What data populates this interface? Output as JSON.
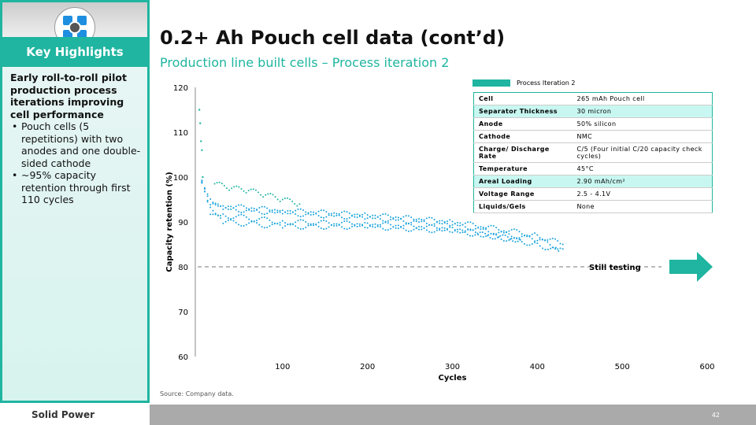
{
  "sidebar": {
    "heading": "Key Highlights",
    "lead": "Early roll-to-roll pilot production process iterations improving cell performance",
    "bullets": [
      "Pouch cells (5 repetitions) with two anodes and one double-sided cathode",
      "~95% capacity retention through first 110 cycles"
    ]
  },
  "title": "0.2+ Ah Pouch cell data (cont’d)",
  "subtitle": "Production line built cells – Process iteration 2",
  "spec_table": [
    {
      "k": "Cell",
      "v": "265 mAh Pouch cell",
      "hl": false
    },
    {
      "k": "Separator Thickness",
      "v": "30 micron",
      "hl": true
    },
    {
      "k": "Anode",
      "v": "50% silicon",
      "hl": false
    },
    {
      "k": "Cathode",
      "v": "NMC",
      "hl": false
    },
    {
      "k": "Charge/ Discharge Rate",
      "v": "C/5 (Four initial C/20 capacity check cycles)",
      "hl": false
    },
    {
      "k": "Temperature",
      "v": "45°C",
      "hl": false
    },
    {
      "k": "Areal Loading",
      "v": "2.90 mAh/cm²",
      "hl": true
    },
    {
      "k": "Voltage Range",
      "v": "2.5 - 4.1V",
      "hl": false
    },
    {
      "k": "Liquids/Gels",
      "v": "None",
      "hl": false
    }
  ],
  "annotation": "Still testing",
  "source": "Source: Company data.",
  "footer": {
    "brand": "Solid Power",
    "page": "42"
  },
  "colors": {
    "accent": "#1fb5a0",
    "blue": "#1ba3dc"
  },
  "chart_data": {
    "type": "scatter",
    "xlabel": "Cycles",
    "ylabel": "Capacity retention (%)",
    "xlim": [
      0,
      600
    ],
    "ylim": [
      60,
      120
    ],
    "xticks": [
      100,
      200,
      300,
      400,
      500,
      600
    ],
    "yticks": [
      60,
      70,
      80,
      90,
      100,
      110,
      120
    ],
    "reference_line": 80,
    "legend": "top-right",
    "series": [
      {
        "name": "Process Iteration 2",
        "color": "#1fb5a0",
        "points": [
          [
            2,
            115
          ],
          [
            3,
            112
          ],
          [
            4,
            108
          ],
          [
            5,
            106
          ],
          [
            6,
            100
          ],
          [
            20,
            98.5
          ],
          [
            40,
            97.5
          ],
          [
            60,
            97
          ],
          [
            80,
            96
          ],
          [
            100,
            95
          ],
          [
            120,
            94
          ]
        ]
      },
      {
        "color": "#1ba3dc",
        "points": [
          [
            5,
            99
          ],
          [
            15,
            95
          ],
          [
            30,
            93.5
          ],
          [
            100,
            92.5
          ],
          [
            200,
            91.5
          ],
          [
            300,
            90
          ],
          [
            400,
            87
          ],
          [
            430,
            85
          ]
        ]
      },
      {
        "color": "#1ba3dc",
        "points": [
          [
            5,
            99
          ],
          [
            15,
            94
          ],
          [
            30,
            93
          ],
          [
            100,
            92
          ],
          [
            200,
            91
          ],
          [
            300,
            89.5
          ],
          [
            400,
            86
          ],
          [
            430,
            84
          ]
        ]
      },
      {
        "color": "#1ba3dc",
        "points": [
          [
            5,
            99
          ],
          [
            15,
            93
          ],
          [
            30,
            91.5
          ],
          [
            100,
            90
          ],
          [
            200,
            89.5
          ],
          [
            300,
            88.5
          ],
          [
            400,
            85
          ],
          [
            425,
            83.5
          ]
        ]
      },
      {
        "color": "#1ba3dc",
        "points": [
          [
            5,
            99
          ],
          [
            15,
            92
          ],
          [
            30,
            90
          ],
          [
            100,
            89
          ],
          [
            200,
            89
          ],
          [
            300,
            88
          ],
          [
            380,
            86
          ]
        ]
      }
    ]
  }
}
